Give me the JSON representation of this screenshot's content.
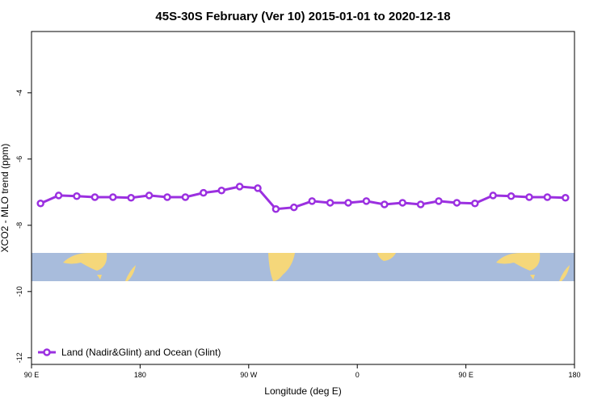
{
  "chart_data": {
    "type": "line",
    "title": "45S-30S February (Ver 10)   2015-01-01 to 2020-12-18",
    "xlabel": "Longitude (deg E)",
    "ylabel": "XCO2 - MLO trend (ppm)",
    "xlim": [
      90,
      540
    ],
    "xticks": [
      {
        "value": 90,
        "label": "90 E"
      },
      {
        "value": 180,
        "label": "180"
      },
      {
        "value": 270,
        "label": "90 W"
      },
      {
        "value": 360,
        "label": "0"
      },
      {
        "value": 450,
        "label": "90 E"
      },
      {
        "value": 540,
        "label": "180"
      }
    ],
    "ylim": [
      -12.2,
      -2.15
    ],
    "yticks": [
      -4,
      -6,
      -8,
      -10,
      -12
    ],
    "legend": "lower left",
    "x": [
      97.5,
      112.5,
      127.5,
      142.5,
      157.5,
      172.5,
      187.5,
      202.5,
      217.5,
      232.5,
      247.5,
      262.5,
      277.5,
      292.5,
      307.5,
      322.5,
      337.5,
      352.5,
      367.5,
      382.5,
      397.5,
      412.5,
      427.5,
      442.5,
      457.5,
      472.5,
      487.5,
      502.5,
      517.5,
      532.5
    ],
    "series": [
      {
        "name": "Land (Nadir&Glint) and Ocean (Glint)",
        "color": "#9b30e0",
        "values": [
          -7.34,
          -7.1,
          -7.12,
          -7.15,
          -7.15,
          -7.17,
          -7.1,
          -7.15,
          -7.15,
          -7.02,
          -6.95,
          -6.83,
          -6.88,
          -7.51,
          -7.46,
          -7.27,
          -7.32,
          -7.32,
          -7.27,
          -7.37,
          -7.32,
          -7.37,
          -7.27,
          -7.32,
          -7.34,
          -7.1,
          -7.12,
          -7.15,
          -7.15,
          -7.17
        ]
      }
    ]
  }
}
